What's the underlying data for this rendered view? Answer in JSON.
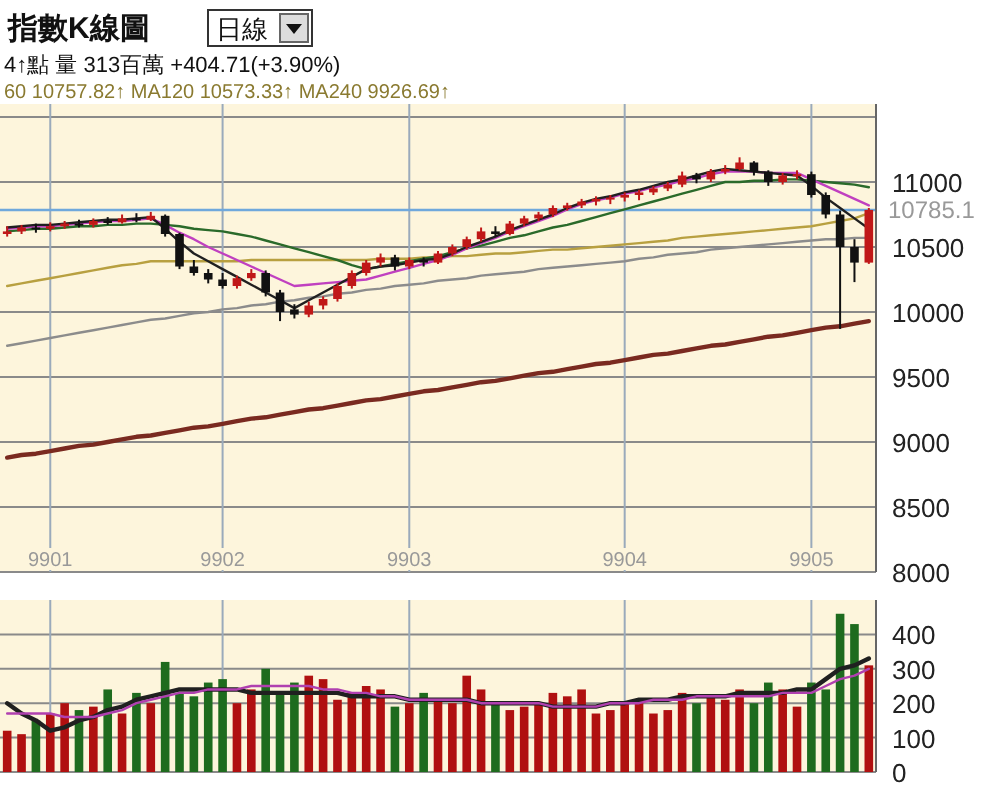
{
  "chart_data": [
    {
      "type": "candlestick",
      "title": "指數K線圖",
      "annotations": [
        "日線",
        "4↑點 量 313百萬 +404.71(+3.90%)",
        "60 10757.82↑ MA120 10573.33↑ MA240 9926.69↑"
      ],
      "categories": [
        null,
        null,
        null,
        "9901",
        null,
        null,
        null,
        null,
        null,
        null,
        null,
        null,
        null,
        null,
        null,
        "9902",
        null,
        null,
        null,
        null,
        null,
        null,
        null,
        null,
        null,
        null,
        null,
        null,
        "9903",
        null,
        null,
        null,
        null,
        null,
        null,
        null,
        null,
        null,
        null,
        null,
        null,
        null,
        null,
        "9904",
        null,
        null,
        null,
        null,
        null,
        null,
        null,
        null,
        null,
        null,
        null,
        null,
        "9905",
        null,
        null,
        null,
        null
      ],
      "ohlc": [
        [
          10600,
          10660,
          10580,
          10620
        ],
        [
          10620,
          10670,
          10600,
          10650
        ],
        [
          10650,
          10680,
          10610,
          10640
        ],
        [
          10640,
          10690,
          10620,
          10660
        ],
        [
          10660,
          10700,
          10640,
          10680
        ],
        [
          10680,
          10710,
          10650,
          10670
        ],
        [
          10670,
          10720,
          10650,
          10700
        ],
        [
          10700,
          10730,
          10670,
          10690
        ],
        [
          10690,
          10750,
          10680,
          10720
        ],
        [
          10720,
          10760,
          10690,
          10710
        ],
        [
          10710,
          10770,
          10700,
          10740
        ],
        [
          10740,
          10750,
          10580,
          10600
        ],
        [
          10600,
          10610,
          10330,
          10350
        ],
        [
          10350,
          10400,
          10280,
          10300
        ],
        [
          10300,
          10330,
          10220,
          10250
        ],
        [
          10250,
          10300,
          10180,
          10200
        ],
        [
          10200,
          10280,
          10180,
          10260
        ],
        [
          10260,
          10330,
          10240,
          10300
        ],
        [
          10300,
          10320,
          10120,
          10150
        ],
        [
          10150,
          10170,
          9930,
          10000
        ],
        [
          10020,
          10060,
          9950,
          9980
        ],
        [
          9980,
          10080,
          9960,
          10050
        ],
        [
          10050,
          10120,
          10020,
          10100
        ],
        [
          10100,
          10220,
          10080,
          10200
        ],
        [
          10200,
          10320,
          10180,
          10300
        ],
        [
          10300,
          10400,
          10280,
          10380
        ],
        [
          10380,
          10450,
          10350,
          10420
        ],
        [
          10420,
          10440,
          10320,
          10350
        ],
        [
          10350,
          10420,
          10330,
          10400
        ],
        [
          10400,
          10420,
          10350,
          10380
        ],
        [
          10380,
          10470,
          10370,
          10450
        ],
        [
          10450,
          10520,
          10430,
          10500
        ],
        [
          10500,
          10580,
          10480,
          10560
        ],
        [
          10560,
          10650,
          10540,
          10620
        ],
        [
          10620,
          10660,
          10580,
          10600
        ],
        [
          10600,
          10700,
          10590,
          10680
        ],
        [
          10680,
          10740,
          10660,
          10720
        ],
        [
          10720,
          10770,
          10700,
          10750
        ],
        [
          10750,
          10820,
          10730,
          10800
        ],
        [
          10800,
          10840,
          10780,
          10820
        ],
        [
          10820,
          10870,
          10800,
          10850
        ],
        [
          10850,
          10890,
          10820,
          10870
        ],
        [
          10870,
          10900,
          10830,
          10880
        ],
        [
          10880,
          10920,
          10850,
          10900
        ],
        [
          10900,
          10940,
          10860,
          10920
        ],
        [
          10920,
          10970,
          10900,
          10950
        ],
        [
          10950,
          11000,
          10930,
          10980
        ],
        [
          10980,
          11080,
          10960,
          11050
        ],
        [
          11050,
          11070,
          10990,
          11020
        ],
        [
          11020,
          11100,
          11000,
          11080
        ],
        [
          11080,
          11130,
          11060,
          11100
        ],
        [
          11100,
          11190,
          11090,
          11150
        ],
        [
          11150,
          11160,
          11050,
          11080
        ],
        [
          11080,
          11090,
          10970,
          11000
        ],
        [
          11000,
          11070,
          10980,
          11050
        ],
        [
          11050,
          11090,
          11020,
          11060
        ],
        [
          11060,
          11080,
          10880,
          10900
        ],
        [
          10900,
          10920,
          10720,
          10750
        ],
        [
          10750,
          10780,
          9870,
          10500
        ],
        [
          10500,
          10560,
          10230,
          10380
        ],
        [
          10380,
          10800,
          10370,
          10785
        ]
      ],
      "series": [
        {
          "type": "line",
          "color": "#7a2a20",
          "values": [
            8880,
            8900,
            8910,
            8930,
            8950,
            8970,
            8980,
            9000,
            9020,
            9040,
            9050,
            9070,
            9090,
            9110,
            9120,
            9140,
            9160,
            9180,
            9190,
            9210,
            9230,
            9250,
            9260,
            9280,
            9300,
            9320,
            9330,
            9350,
            9370,
            9390,
            9400,
            9420,
            9440,
            9460,
            9470,
            9490,
            9510,
            9530,
            9540,
            9560,
            9580,
            9600,
            9610,
            9630,
            9650,
            9670,
            9680,
            9700,
            9720,
            9740,
            9750,
            9770,
            9790,
            9810,
            9820,
            9840,
            9860,
            9880,
            9890,
            9910,
            9930
          ]
        },
        {
          "type": "line",
          "color": "#8c8c8c",
          "values": [
            9740,
            9760,
            9780,
            9800,
            9820,
            9840,
            9860,
            9880,
            9900,
            9920,
            9940,
            9950,
            9970,
            9990,
            10000,
            10020,
            10030,
            10050,
            10060,
            10080,
            10090,
            10110,
            10120,
            10140,
            10150,
            10170,
            10180,
            10200,
            10210,
            10220,
            10240,
            10250,
            10260,
            10280,
            10290,
            10300,
            10310,
            10330,
            10340,
            10350,
            10360,
            10370,
            10380,
            10390,
            10410,
            10420,
            10440,
            10450,
            10460,
            10480,
            10490,
            10500,
            10510,
            10520,
            10530,
            10540,
            10550,
            10560,
            10560,
            10570,
            10570
          ]
        },
        {
          "type": "line",
          "color": "#b8a040",
          "values": [
            10200,
            10220,
            10240,
            10260,
            10280,
            10300,
            10320,
            10340,
            10360,
            10370,
            10390,
            10390,
            10390,
            10390,
            10390,
            10390,
            10390,
            10400,
            10400,
            10400,
            10400,
            10400,
            10400,
            10400,
            10400,
            10400,
            10410,
            10410,
            10410,
            10420,
            10420,
            10430,
            10430,
            10440,
            10450,
            10450,
            10460,
            10470,
            10480,
            10480,
            10490,
            10500,
            10510,
            10520,
            10530,
            10540,
            10550,
            10570,
            10580,
            10590,
            10600,
            10610,
            10620,
            10630,
            10640,
            10650,
            10660,
            10680,
            10700,
            10720,
            10760
          ]
        },
        {
          "type": "line",
          "color": "#2a6a2a",
          "values": [
            10620,
            10630,
            10640,
            10640,
            10650,
            10660,
            10660,
            10670,
            10670,
            10680,
            10680,
            10670,
            10660,
            10640,
            10630,
            10620,
            10600,
            10580,
            10550,
            10520,
            10490,
            10460,
            10430,
            10400,
            10360,
            10330,
            10350,
            10370,
            10390,
            10410,
            10430,
            10460,
            10490,
            10510,
            10540,
            10570,
            10590,
            10620,
            10650,
            10670,
            10700,
            10730,
            10760,
            10790,
            10820,
            10850,
            10880,
            10910,
            10940,
            10970,
            11000,
            11000,
            11010,
            11010,
            11020,
            11020,
            11010,
            11000,
            10990,
            10980,
            10960
          ]
        },
        {
          "type": "line",
          "color": "#c040c0",
          "values": [
            10640,
            10650,
            10660,
            10660,
            10670,
            10680,
            10690,
            10700,
            10700,
            10710,
            10720,
            10670,
            10610,
            10560,
            10500,
            10450,
            10400,
            10350,
            10300,
            10250,
            10200,
            10210,
            10220,
            10230,
            10240,
            10250,
            10280,
            10310,
            10340,
            10370,
            10400,
            10440,
            10490,
            10530,
            10570,
            10620,
            10660,
            10700,
            10740,
            10790,
            10830,
            10860,
            10880,
            10910,
            10930,
            10960,
            10980,
            11010,
            11030,
            11060,
            11080,
            11080,
            11080,
            11070,
            11070,
            11070,
            11020,
            10970,
            10920,
            10870,
            10820
          ]
        },
        {
          "type": "line",
          "color": "#202020",
          "values": [
            10650,
            10660,
            10670,
            10670,
            10680,
            10690,
            10700,
            10710,
            10710,
            10720,
            10730,
            10640,
            10540,
            10450,
            10390,
            10330,
            10270,
            10210,
            10150,
            10090,
            10030,
            10090,
            10150,
            10210,
            10270,
            10330,
            10350,
            10360,
            10380,
            10400,
            10410,
            10450,
            10500,
            10540,
            10580,
            10630,
            10670,
            10710,
            10750,
            10800,
            10840,
            10870,
            10890,
            10920,
            10940,
            10970,
            11000,
            11020,
            11050,
            11080,
            11100,
            11090,
            11080,
            11070,
            11060,
            11050,
            10970,
            10880,
            10800,
            10720,
            10640
          ]
        }
      ],
      "ylim": [
        8000,
        11600
      ],
      "yticks": [
        8000,
        8500,
        9000,
        9500,
        10000,
        10500,
        11000,
        {
          "value": 11500,
          "label": null
        }
      ],
      "ref_lines": [
        {
          "axis": "y",
          "value": 10785.1,
          "label": "10785.1",
          "color": "#6fa8dc"
        }
      ],
      "grid": true
    },
    {
      "type": "bar",
      "categories": [
        null,
        null,
        null,
        "9901",
        null,
        null,
        null,
        null,
        null,
        null,
        null,
        null,
        null,
        null,
        null,
        "9902",
        null,
        null,
        null,
        null,
        null,
        null,
        null,
        null,
        null,
        null,
        null,
        null,
        "9903",
        null,
        null,
        null,
        null,
        null,
        null,
        null,
        null,
        null,
        null,
        null,
        null,
        null,
        null,
        "9904",
        null,
        null,
        null,
        null,
        null,
        null,
        null,
        null,
        null,
        null,
        null,
        null,
        "9905",
        null,
        null,
        null,
        null
      ],
      "values": [
        120,
        110,
        150,
        170,
        200,
        180,
        190,
        240,
        170,
        230,
        200,
        320,
        230,
        220,
        260,
        270,
        200,
        240,
        300,
        230,
        260,
        280,
        270,
        210,
        230,
        250,
        240,
        190,
        200,
        230,
        210,
        200,
        280,
        240,
        200,
        180,
        190,
        200,
        230,
        220,
        240,
        170,
        180,
        200,
        210,
        170,
        180,
        230,
        200,
        220,
        210,
        240,
        200,
        260,
        240,
        190,
        260,
        240,
        460,
        430,
        310
      ],
      "colors": [
        "#b01010",
        "#b01010",
        "#1e6b1e",
        "#b01010",
        "#b01010",
        "#1e6b1e",
        "#b01010",
        "#1e6b1e",
        "#b01010",
        "#1e6b1e",
        "#b01010",
        "#1e6b1e",
        "#1e6b1e",
        "#1e6b1e",
        "#1e6b1e",
        "#1e6b1e",
        "#b01010",
        "#b01010",
        "#1e6b1e",
        "#1e6b1e",
        "#1e6b1e",
        "#b01010",
        "#b01010",
        "#b01010",
        "#b01010",
        "#b01010",
        "#b01010",
        "#1e6b1e",
        "#b01010",
        "#1e6b1e",
        "#b01010",
        "#b01010",
        "#b01010",
        "#b01010",
        "#1e6b1e",
        "#b01010",
        "#b01010",
        "#b01010",
        "#b01010",
        "#b01010",
        "#b01010",
        "#b01010",
        "#b01010",
        "#b01010",
        "#b01010",
        "#b01010",
        "#b01010",
        "#b01010",
        "#1e6b1e",
        "#b01010",
        "#b01010",
        "#b01010",
        "#1e6b1e",
        "#1e6b1e",
        "#b01010",
        "#b01010",
        "#1e6b1e",
        "#1e6b1e",
        "#1e6b1e",
        "#1e6b1e",
        "#b01010"
      ],
      "series": [
        {
          "type": "line",
          "color": "#202020",
          "values": [
            200,
            170,
            150,
            120,
            130,
            150,
            160,
            180,
            190,
            210,
            220,
            230,
            240,
            240,
            240,
            240,
            240,
            230,
            230,
            230,
            230,
            230,
            230,
            230,
            220,
            220,
            220,
            220,
            210,
            210,
            210,
            210,
            210,
            200,
            200,
            200,
            200,
            200,
            190,
            190,
            190,
            190,
            200,
            200,
            210,
            210,
            210,
            220,
            220,
            220,
            220,
            230,
            230,
            230,
            230,
            240,
            240,
            270,
            300,
            310,
            330
          ]
        },
        {
          "type": "line",
          "color": "#b040b0",
          "values": [
            170,
            170,
            170,
            170,
            160,
            160,
            160,
            170,
            180,
            200,
            210,
            220,
            230,
            230,
            240,
            240,
            240,
            250,
            250,
            250,
            250,
            250,
            240,
            240,
            230,
            230,
            220,
            220,
            210,
            210,
            210,
            210,
            210,
            200,
            200,
            200,
            200,
            200,
            190,
            190,
            190,
            190,
            200,
            200,
            200,
            210,
            210,
            210,
            220,
            220,
            220,
            220,
            220,
            220,
            230,
            230,
            230,
            250,
            270,
            280,
            300
          ]
        }
      ],
      "ylim": [
        0,
        500
      ],
      "yticks": [
        0,
        100,
        200,
        300,
        400
      ],
      "tick_labels": "y",
      "grid": true
    }
  ]
}
